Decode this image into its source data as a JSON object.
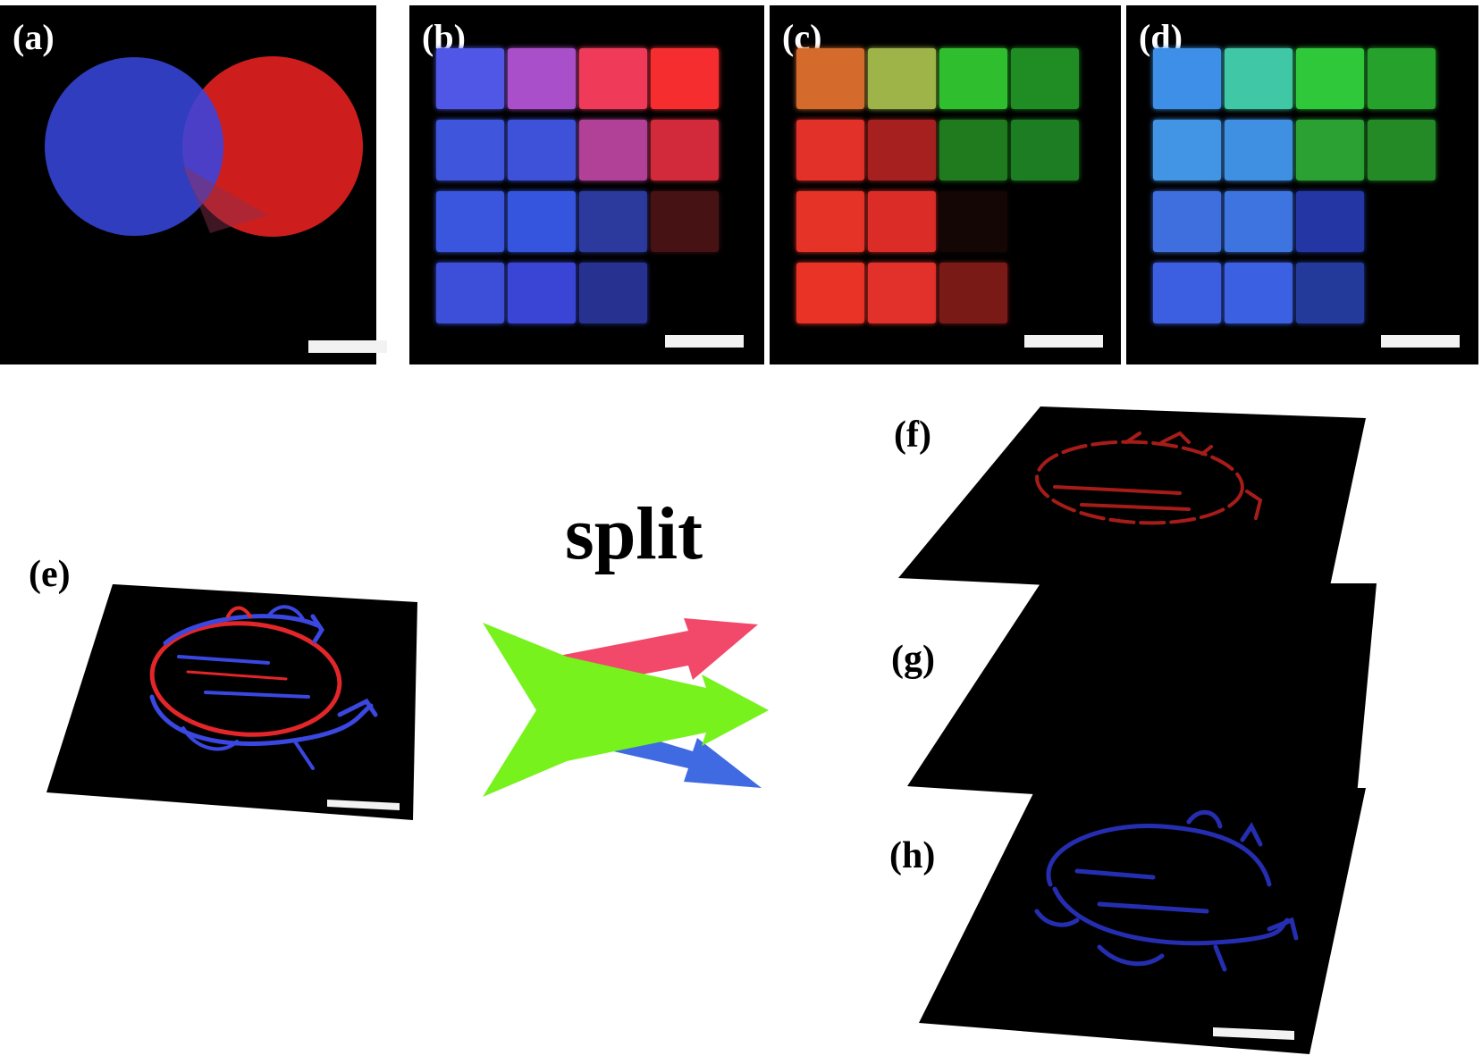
{
  "figure": {
    "panel_labels": {
      "a": "(a)",
      "b": "(b)",
      "c": "(c)",
      "d": "(d)",
      "e": "(e)",
      "f": "(f)",
      "g": "(g)",
      "h": "(h)"
    },
    "split_label": "split"
  },
  "colors": {
    "background": "#000000",
    "blue": "#3b49d8",
    "red": "#e2262a",
    "green": "#22c22c",
    "arrow_green": "#77f21c",
    "arrow_red": "#f2486a",
    "arrow_blue": "#3f6ae2",
    "scale_bar": "#f2f2f2"
  },
  "panels": {
    "b": [
      [
        "#5057e6",
        "#a94fc9",
        "#ef3a5a",
        "#f62d2f"
      ],
      [
        "#3f55dc",
        "#3d52d9",
        "#b04196",
        "#d22a3a"
      ],
      [
        "#3a55de",
        "#3555de",
        "#2b3a9c",
        "#471214"
      ],
      [
        "#3d4fd8",
        "#3a45d6",
        "#27318f",
        ""
      ]
    ],
    "c": [
      [
        "#d46a2c",
        "#9fb448",
        "#2fbf2e",
        "#1f8c24"
      ],
      [
        "#e23128",
        "#a62020",
        "#1f7b1e",
        "#1c7d22"
      ],
      [
        "#e53328",
        "#dc2c28",
        "#150606",
        ""
      ],
      [
        "#e83326",
        "#e2302a",
        "#7a1a17",
        ""
      ]
    ],
    "d": [
      [
        "#3d8fe8",
        "#40c7a6",
        "#2fc83a",
        "#25a12c"
      ],
      [
        "#4294e4",
        "#3f8fe3",
        "#2aa132",
        "#238a26"
      ],
      [
        "#3f6fde",
        "#3e74df",
        "#2436a3",
        ""
      ],
      [
        "#3c5fe2",
        "#3b60e1",
        "#243a9b",
        ""
      ]
    ]
  },
  "icons": {
    "split_arrow": "split-arrow-icon"
  }
}
